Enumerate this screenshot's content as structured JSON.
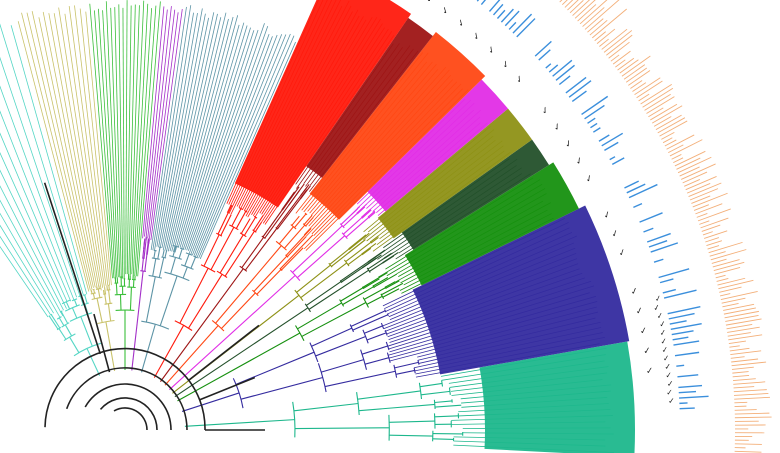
{
  "figure": {
    "type": "circular-phylogenetic-tree",
    "background": "#ffffff",
    "crop": "upper-right quadrant of a radial tree with colored clade wedges, check-mark annotations, blue inner bar ring and orange outer bar ring"
  },
  "colors": {
    "center_lines": "#222222",
    "blue_bars": "#3b8fdc",
    "orange_bars": "#f2a66a",
    "check_marks": "#222222"
  },
  "clades": [
    {
      "name": "clade-red",
      "color": "#ff1a0d"
    },
    {
      "name": "clade-darkred",
      "color": "#9e1515"
    },
    {
      "name": "clade-orangered",
      "color": "#ff4814"
    },
    {
      "name": "clade-magenta",
      "color": "#e12de6"
    },
    {
      "name": "clade-olive",
      "color": "#8e9116"
    },
    {
      "name": "clade-darkgreen",
      "color": "#23502a"
    },
    {
      "name": "clade-green",
      "color": "#16900f"
    },
    {
      "name": "clade-navy",
      "color": "#342b9f"
    },
    {
      "name": "clade-teal",
      "color": "#1db78c"
    },
    {
      "name": "clade-steelblue",
      "color": "#5d94a6"
    },
    {
      "name": "clade-purple",
      "color": "#a32fc8"
    },
    {
      "name": "clade-lightgreen",
      "color": "#3bbf3b"
    },
    {
      "name": "clade-khaki",
      "color": "#c9c26a"
    },
    {
      "name": "clade-aqua",
      "color": "#55d6c5"
    }
  ]
}
